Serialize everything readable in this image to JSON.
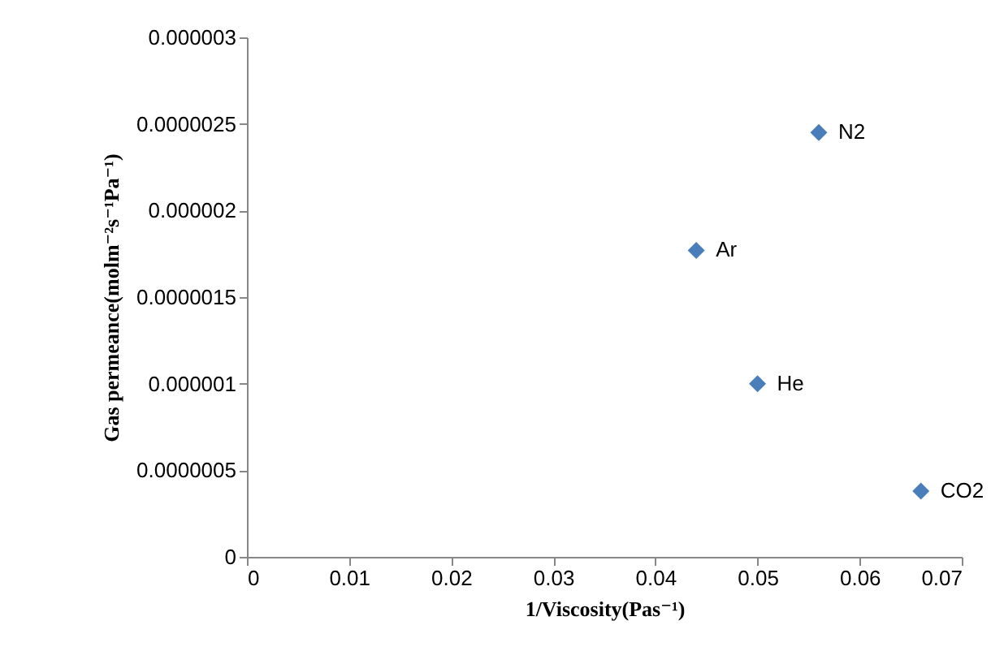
{
  "chart_data": {
    "type": "scatter",
    "xlabel": "1/Viscosity(Pas⁻¹)",
    "ylabel": "Gas permeance(molm⁻²s⁻¹Pa⁻¹)",
    "x": [
      0.044,
      0.056,
      0.05,
      0.066
    ],
    "series": [
      {
        "color": "#4a7ebb",
        "values": [
          1.77e-06,
          2.45e-06,
          1e-06,
          3.8e-07
        ]
      }
    ],
    "annotations": [
      {
        "text": "Ar",
        "x": 0.044,
        "y": 1.77e-06
      },
      {
        "text": "N2",
        "x": 0.056,
        "y": 2.45e-06
      },
      {
        "text": "He",
        "x": 0.05,
        "y": 1e-06
      },
      {
        "text": "CO2",
        "x": 0.066,
        "y": 3.8e-07
      }
    ],
    "xlim": [
      0,
      0.07
    ],
    "xticks": [
      0,
      0.01,
      0.02,
      0.03,
      0.04,
      0.05,
      0.06,
      0.07
    ],
    "ylim": [
      0,
      3e-06
    ],
    "yticks": [
      {
        "value": 0,
        "label": "0"
      },
      {
        "value": 5e-07,
        "label": "0.0000005"
      },
      {
        "value": 1e-06,
        "label": "0.000001"
      },
      {
        "value": 1.5e-06,
        "label": "0.0000015"
      },
      {
        "value": 2e-06,
        "label": "0.000002"
      },
      {
        "value": 2.5e-06,
        "label": "0.0000025"
      },
      {
        "value": 3e-06,
        "label": "0.000003"
      }
    ],
    "grid": false,
    "marker": "diamond"
  }
}
